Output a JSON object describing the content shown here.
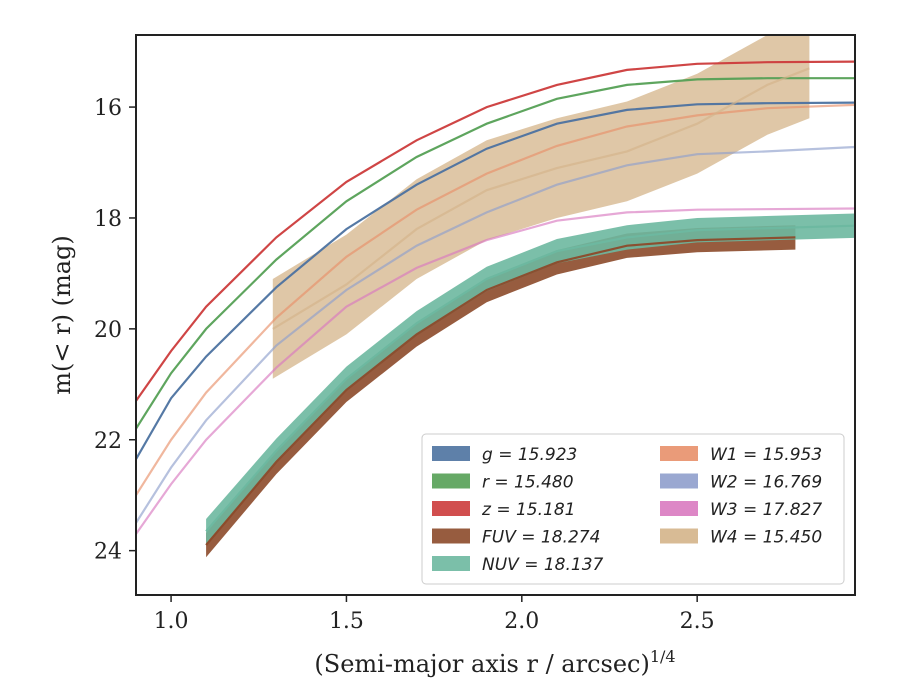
{
  "chart_data": {
    "type": "line",
    "title": "",
    "xlabel": "(Semi-major axis r / arcsec)",
    "xlabel_superscript": "1/4",
    "ylabel": "m(< r) (mag)",
    "xlim": [
      0.9,
      2.95
    ],
    "ylim": [
      24.8,
      14.7
    ],
    "y_inverted": true,
    "x_ticks": [
      "1.0",
      "1.5",
      "2.0",
      "2.5"
    ],
    "y_ticks": [
      "16",
      "18",
      "20",
      "22",
      "24"
    ],
    "grid": false,
    "legend_position": "lower-right",
    "legend_columns": 2,
    "series": [
      {
        "name": "g = 15.923",
        "color": "#4c72a0",
        "kind": "curve",
        "asymptote": 15.923,
        "points": [
          [
            0.9,
            22.35
          ],
          [
            1.0,
            21.25
          ],
          [
            1.1,
            20.5
          ],
          [
            1.3,
            19.25
          ],
          [
            1.5,
            18.2
          ],
          [
            1.7,
            17.4
          ],
          [
            1.9,
            16.75
          ],
          [
            2.1,
            16.3
          ],
          [
            2.3,
            16.05
          ],
          [
            2.5,
            15.95
          ],
          [
            2.7,
            15.93
          ],
          [
            2.95,
            15.92
          ]
        ]
      },
      {
        "name": "r = 15.480",
        "color": "#55a055",
        "kind": "curve",
        "asymptote": 15.48,
        "points": [
          [
            0.9,
            21.8
          ],
          [
            1.0,
            20.8
          ],
          [
            1.1,
            20.0
          ],
          [
            1.3,
            18.75
          ],
          [
            1.5,
            17.7
          ],
          [
            1.7,
            16.9
          ],
          [
            1.9,
            16.3
          ],
          [
            2.1,
            15.85
          ],
          [
            2.3,
            15.6
          ],
          [
            2.5,
            15.5
          ],
          [
            2.7,
            15.48
          ],
          [
            2.95,
            15.48
          ]
        ]
      },
      {
        "name": "z = 15.181",
        "color": "#cc3b3b",
        "kind": "curve",
        "asymptote": 15.181,
        "points": [
          [
            0.9,
            21.3
          ],
          [
            1.0,
            20.4
          ],
          [
            1.1,
            19.6
          ],
          [
            1.3,
            18.35
          ],
          [
            1.5,
            17.35
          ],
          [
            1.7,
            16.6
          ],
          [
            1.9,
            16.0
          ],
          [
            2.1,
            15.6
          ],
          [
            2.3,
            15.33
          ],
          [
            2.5,
            15.22
          ],
          [
            2.7,
            15.19
          ],
          [
            2.95,
            15.18
          ]
        ]
      },
      {
        "name": "FUV = 18.274",
        "color": "#8c4a2a",
        "kind": "band",
        "points": [
          [
            1.1,
            23.9
          ],
          [
            1.3,
            22.4
          ],
          [
            1.5,
            21.1
          ],
          [
            1.7,
            20.1
          ],
          [
            1.9,
            19.3
          ],
          [
            2.1,
            18.8
          ],
          [
            2.3,
            18.5
          ],
          [
            2.5,
            18.4
          ],
          [
            2.78,
            18.35
          ]
        ]
      },
      {
        "name": "NUV = 18.137",
        "color": "#6db8a0",
        "kind": "band",
        "points": [
          [
            1.1,
            23.65
          ],
          [
            1.3,
            22.2
          ],
          [
            1.5,
            20.9
          ],
          [
            1.7,
            19.9
          ],
          [
            1.9,
            19.1
          ],
          [
            2.1,
            18.6
          ],
          [
            2.3,
            18.35
          ],
          [
            2.5,
            18.22
          ],
          [
            2.95,
            18.14
          ]
        ]
      },
      {
        "name": "W1 = 15.953",
        "color": "#e8906a",
        "kind": "curve",
        "asymptote": 15.953,
        "points": [
          [
            0.9,
            23.0
          ],
          [
            1.0,
            22.0
          ],
          [
            1.1,
            21.15
          ],
          [
            1.3,
            19.8
          ],
          [
            1.5,
            18.7
          ],
          [
            1.7,
            17.85
          ],
          [
            1.9,
            17.2
          ],
          [
            2.1,
            16.7
          ],
          [
            2.3,
            16.35
          ],
          [
            2.5,
            16.15
          ],
          [
            2.7,
            16.02
          ],
          [
            2.95,
            15.96
          ]
        ]
      },
      {
        "name": "W2 = 16.769",
        "color": "#8f9fcc",
        "kind": "curve",
        "asymptote": 16.769,
        "points": [
          [
            0.9,
            23.5
          ],
          [
            1.0,
            22.5
          ],
          [
            1.1,
            21.65
          ],
          [
            1.3,
            20.3
          ],
          [
            1.5,
            19.3
          ],
          [
            1.7,
            18.5
          ],
          [
            1.9,
            17.9
          ],
          [
            2.1,
            17.4
          ],
          [
            2.3,
            17.05
          ],
          [
            2.5,
            16.85
          ],
          [
            2.7,
            16.8
          ],
          [
            2.95,
            16.72
          ]
        ]
      },
      {
        "name": "W3 = 17.827",
        "color": "#d97ac0",
        "kind": "curve",
        "asymptote": 17.827,
        "points": [
          [
            0.9,
            23.7
          ],
          [
            1.0,
            22.8
          ],
          [
            1.1,
            22.0
          ],
          [
            1.3,
            20.7
          ],
          [
            1.5,
            19.6
          ],
          [
            1.7,
            18.9
          ],
          [
            1.9,
            18.4
          ],
          [
            2.1,
            18.05
          ],
          [
            2.3,
            17.9
          ],
          [
            2.5,
            17.85
          ],
          [
            2.95,
            17.83
          ]
        ]
      },
      {
        "name": "W4 = 15.450",
        "color": "#d4b48a",
        "kind": "band",
        "points": [
          [
            1.29,
            20.0
          ],
          [
            1.5,
            19.2
          ],
          [
            1.7,
            18.2
          ],
          [
            1.9,
            17.5
          ],
          [
            2.1,
            17.1
          ],
          [
            2.3,
            16.8
          ],
          [
            2.5,
            16.3
          ],
          [
            2.7,
            15.6
          ],
          [
            2.82,
            15.3
          ]
        ]
      }
    ]
  }
}
